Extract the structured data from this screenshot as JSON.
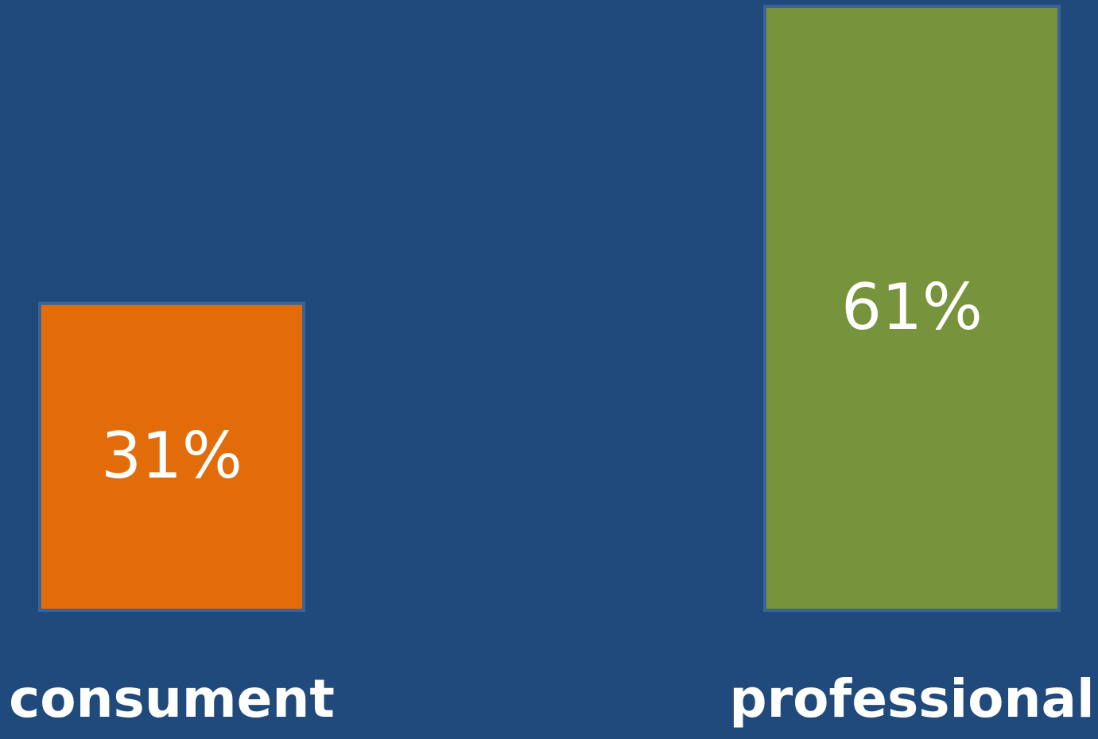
{
  "chart_data": {
    "type": "bar",
    "categories": [
      "consument",
      "professional"
    ],
    "values": [
      31,
      61
    ],
    "value_labels": [
      "31%",
      "61%"
    ],
    "colors": [
      "#e36c0a",
      "#77933c"
    ],
    "ylim": [
      0,
      61
    ]
  }
}
